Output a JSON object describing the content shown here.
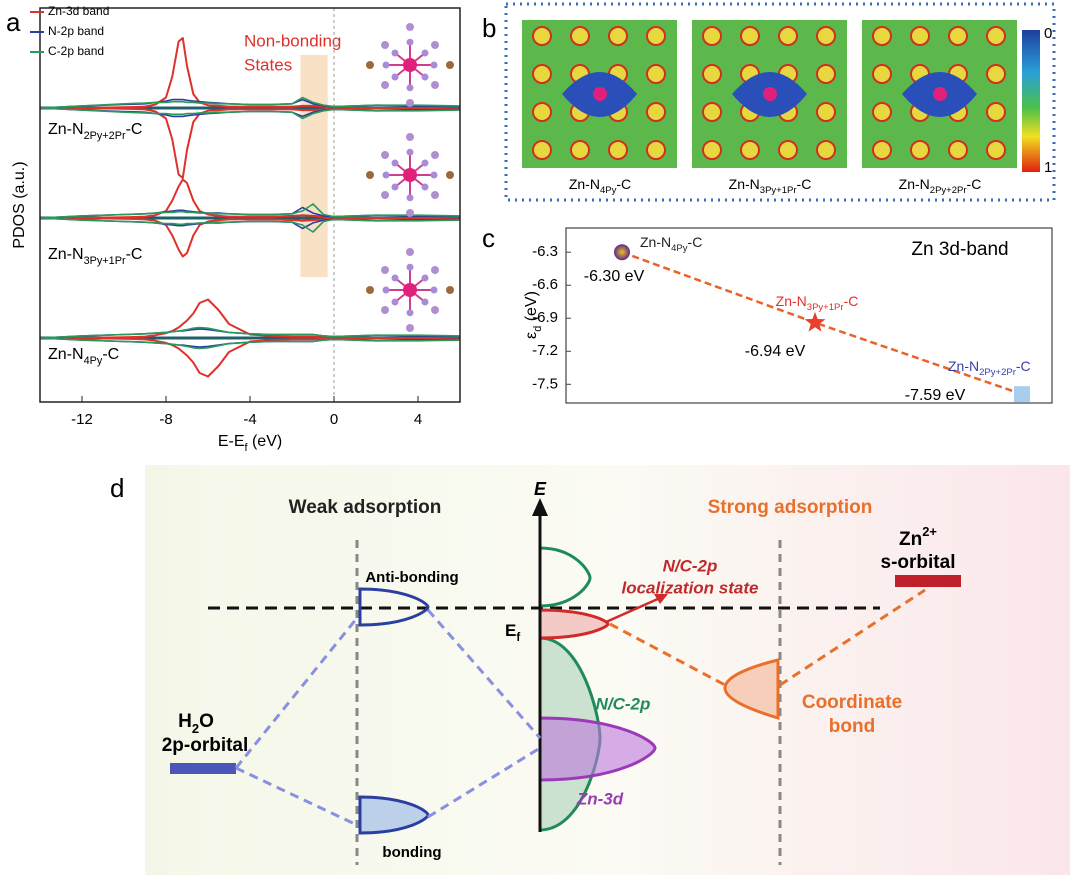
{
  "chart_data": [
    {
      "type": "line",
      "label": "a",
      "ylabel": "PDOS (a.u.)",
      "xlabel": [
        "E-E",
        "f",
        " (eV)"
      ],
      "xlim": [
        -14,
        6
      ],
      "xticks": [
        -12,
        -8,
        -4,
        0,
        4
      ],
      "fermi": 0,
      "legend": [
        {
          "name": "Zn-3d band",
          "color": "#e0302a"
        },
        {
          "name": "N-2p band",
          "color": "#2a3fa0"
        },
        {
          "name": "C-2p band",
          "color": "#2a9a5a"
        }
      ],
      "highlight": {
        "xlim": [
          -1.6,
          -0.3
        ],
        "label": [
          "Non-bonding",
          "States"
        ]
      },
      "x": [
        -14,
        -12,
        -10,
        -9,
        -8.5,
        -8,
        -7.7,
        -7.4,
        -7.2,
        -7,
        -6.7,
        -6.4,
        -6,
        -5.5,
        -5,
        -4,
        -3,
        -2,
        -1.5,
        -1,
        -0.5,
        0,
        1,
        2,
        4,
        6
      ],
      "panels": [
        {
          "name": [
            "Zn-N",
            "2Py+2Pr",
            "-C"
          ],
          "series": [
            {
              "values": [
                0,
                0,
                0.01,
                0.02,
                0.05,
                0.15,
                0.45,
                0.95,
                1.0,
                0.6,
                0.2,
                0.08,
                0.04,
                0.03,
                0.02,
                0.02,
                0.02,
                0.02,
                0.03,
                0.03,
                0.02,
                0,
                0,
                0,
                0,
                0
              ]
            },
            {
              "values": [
                0,
                0.03,
                0.05,
                0.06,
                0.08,
                0.1,
                0.12,
                0.12,
                0.12,
                0.11,
                0.1,
                0.09,
                0.08,
                0.07,
                0.06,
                0.05,
                0.05,
                0.06,
                0.12,
                0.06,
                0.03,
                0.02,
                0.03,
                0.04,
                0.03,
                0.02
              ]
            },
            {
              "values": [
                0,
                0.03,
                0.06,
                0.07,
                0.08,
                0.08,
                0.09,
                0.09,
                0.09,
                0.08,
                0.08,
                0.07,
                0.07,
                0.06,
                0.06,
                0.05,
                0.05,
                0.06,
                0.15,
                0.08,
                0.04,
                0.02,
                0.03,
                0.04,
                0.04,
                0.03
              ]
            }
          ]
        },
        {
          "name": [
            "Zn-N",
            "3Py+1Pr",
            "-C"
          ],
          "series": [
            {
              "values": [
                0,
                0,
                0.01,
                0.02,
                0.04,
                0.1,
                0.25,
                0.45,
                0.55,
                0.5,
                0.25,
                0.1,
                0.05,
                0.03,
                0.02,
                0.02,
                0.02,
                0.03,
                0.04,
                0.03,
                0.02,
                0,
                0,
                0,
                0,
                0
              ]
            },
            {
              "values": [
                0,
                0.03,
                0.05,
                0.06,
                0.07,
                0.09,
                0.1,
                0.11,
                0.11,
                0.1,
                0.09,
                0.08,
                0.07,
                0.07,
                0.06,
                0.05,
                0.05,
                0.06,
                0.15,
                0.07,
                0.03,
                0.02,
                0.03,
                0.04,
                0.03,
                0.02
              ]
            },
            {
              "values": [
                0,
                0.03,
                0.05,
                0.06,
                0.07,
                0.08,
                0.08,
                0.09,
                0.09,
                0.08,
                0.08,
                0.07,
                0.07,
                0.06,
                0.06,
                0.05,
                0.05,
                0.06,
                0.1,
                0.2,
                0.05,
                0.02,
                0.03,
                0.04,
                0.04,
                0.03
              ]
            }
          ]
        },
        {
          "name": [
            "Zn-N",
            "4Py",
            "-C"
          ],
          "series": [
            {
              "values": [
                0,
                0,
                0.01,
                0.02,
                0.04,
                0.07,
                0.1,
                0.15,
                0.2,
                0.25,
                0.35,
                0.5,
                0.55,
                0.4,
                0.2,
                0.05,
                0.03,
                0.02,
                0.02,
                0.02,
                0.01,
                0,
                0,
                0,
                0,
                0
              ]
            },
            {
              "values": [
                0,
                0.03,
                0.05,
                0.06,
                0.07,
                0.08,
                0.09,
                0.1,
                0.1,
                0.11,
                0.12,
                0.13,
                0.12,
                0.1,
                0.08,
                0.06,
                0.05,
                0.05,
                0.05,
                0.05,
                0.03,
                0.02,
                0.03,
                0.04,
                0.03,
                0.02
              ]
            },
            {
              "values": [
                0,
                0.03,
                0.05,
                0.06,
                0.07,
                0.08,
                0.09,
                0.1,
                0.11,
                0.12,
                0.14,
                0.15,
                0.14,
                0.11,
                0.08,
                0.06,
                0.05,
                0.05,
                0.05,
                0.05,
                0.03,
                0.02,
                0.03,
                0.04,
                0.04,
                0.03
              ]
            }
          ]
        }
      ]
    },
    {
      "type": "scatter",
      "label": "c",
      "title": "Zn 3d-band",
      "ylabel": [
        "ε",
        "d",
        " (eV)"
      ],
      "ylim": [
        -7.67,
        -6.08
      ],
      "yticks": [
        -6.3,
        -6.6,
        -6.9,
        -7.2,
        -7.5
      ],
      "categories": [
        [
          "Zn-N",
          "4Py",
          "-C"
        ],
        [
          "Zn-N",
          "3Py+1Pr",
          "-C"
        ],
        [
          "Zn-N",
          "2Py+2Pr",
          "-C"
        ]
      ],
      "category_colors": [
        "#222222",
        "#e0302a",
        "#3a3fa8"
      ],
      "values": [
        -6.3,
        -6.94,
        -7.59
      ],
      "value_labels": [
        "-6.30 eV",
        "-6.94 eV",
        "-7.59 eV"
      ],
      "line_color": "#e8622a"
    }
  ],
  "panel_b": {
    "label": "b",
    "captions": [
      [
        "Zn-N",
        "4Py",
        "-C"
      ],
      [
        "Zn-N",
        "3Py+1Pr",
        "-C"
      ],
      [
        "Zn-N",
        "2Py+2Pr",
        "-C"
      ]
    ],
    "colorbar": {
      "ticks": [
        0,
        1
      ]
    }
  },
  "panel_d": {
    "label": "d",
    "weak": "Weak adsorption",
    "strong": "Strong adsorption",
    "energy_axis": "E",
    "fermi": [
      "E",
      "f"
    ],
    "antibonding": "Anti-bonding",
    "bonding": "bonding",
    "h2o": {
      "formula": [
        "H",
        "2",
        "O"
      ],
      "orbital": "2p-orbital"
    },
    "localization": [
      "N/C-2p",
      "localization state"
    ],
    "nc2p": "N/C-2p",
    "zn3d": "Zn-3d",
    "coordinate": [
      "Coordinate",
      "bond"
    ],
    "zn": {
      "ion": [
        "Zn",
        "2+"
      ],
      "orbital": "s-orbital"
    }
  }
}
